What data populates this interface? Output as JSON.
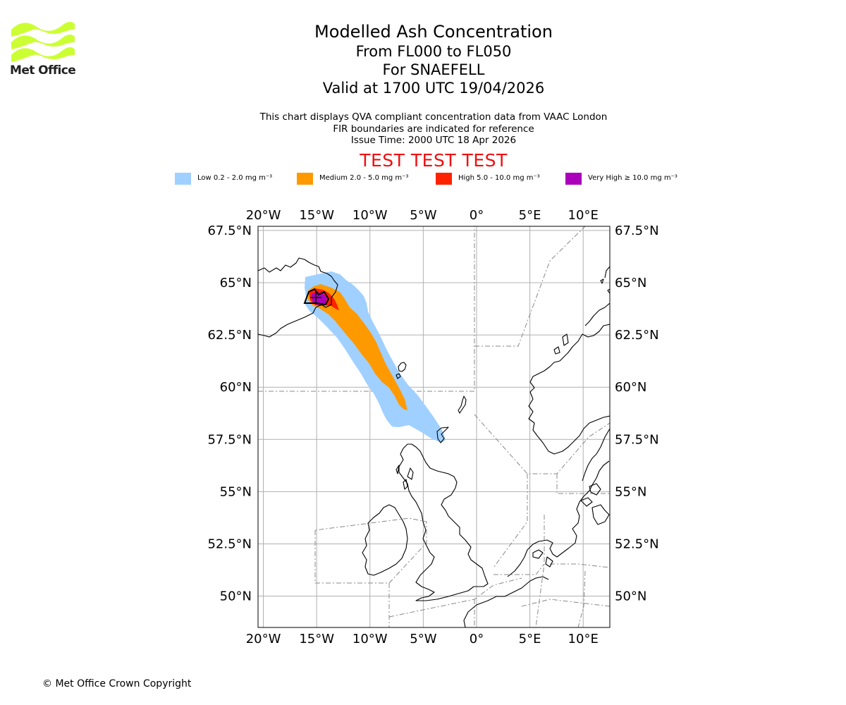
{
  "logo": {
    "text": "Met Office",
    "color": "#ccff33"
  },
  "title": {
    "main": "Modelled Ash Concentration",
    "levels": "From FL000 to FL050",
    "volcano": "For SNAEFELL",
    "valid": "Valid at 1700 UTC 19/04/2026"
  },
  "subtitle": {
    "line1": "This chart displays QVA compliant concentration data from VAAC London",
    "line2": "FIR boundaries are indicated for reference",
    "line3": "Issue Time: 2000 UTC 18 Apr 2026"
  },
  "test_banner": "TEST TEST TEST",
  "legend": [
    {
      "label": "Low 0.2 - 2.0 mg m⁻³",
      "color": "#a0d0ff"
    },
    {
      "label": "Medium 2.0 - 5.0 mg m⁻³",
      "color": "#ff9900"
    },
    {
      "label": "High 5.0 - 10.0 mg m⁻³",
      "color": "#ff2200"
    },
    {
      "label": "Very High  ≥  10.0 mg m⁻³",
      "color": "#aa00bb"
    }
  ],
  "map": {
    "lon_range": [
      -20.5,
      12.5
    ],
    "lat_range": [
      48.5,
      67.7
    ],
    "lon_ticks": [
      {
        "value": -20,
        "label": "20°W"
      },
      {
        "value": -15,
        "label": "15°W"
      },
      {
        "value": -10,
        "label": "10°W"
      },
      {
        "value": -5,
        "label": "5°W"
      },
      {
        "value": 0,
        "label": "0°"
      },
      {
        "value": 5,
        "label": "5°E"
      },
      {
        "value": 10,
        "label": "10°E"
      }
    ],
    "lat_ticks": [
      {
        "value": 67.5,
        "label": "67.5°N"
      },
      {
        "value": 65,
        "label": "65°N"
      },
      {
        "value": 62.5,
        "label": "62.5°N"
      },
      {
        "value": 60,
        "label": "60°N"
      },
      {
        "value": 57.5,
        "label": "57.5°N"
      },
      {
        "value": 55,
        "label": "55°N"
      },
      {
        "value": 52.5,
        "label": "52.5°N"
      },
      {
        "value": 50,
        "label": "50°N"
      }
    ],
    "volcano_location": {
      "lat": 64.8,
      "lon": -15.6
    }
  },
  "copyright": "© Met Office Crown Copyright"
}
